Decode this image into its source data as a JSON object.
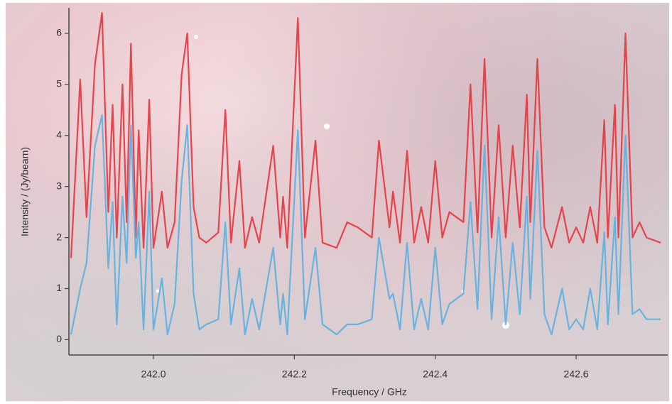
{
  "chart_data": {
    "type": "line",
    "x_label": "Frequency / GHz",
    "y_label": "Intensity / (Jy/beam)",
    "x": [
      241.883,
      241.896,
      241.905,
      241.917,
      241.927,
      241.936,
      241.942,
      241.948,
      241.956,
      241.962,
      241.968,
      241.975,
      241.979,
      241.986,
      241.994,
      242.0,
      242.012,
      242.02,
      242.03,
      242.04,
      242.048,
      242.057,
      242.065,
      242.075,
      242.092,
      242.102,
      242.11,
      242.122,
      242.13,
      242.14,
      242.15,
      242.17,
      242.18,
      242.184,
      242.19,
      242.205,
      242.215,
      242.23,
      242.24,
      242.26,
      242.275,
      242.29,
      242.31,
      242.32,
      242.335,
      242.34,
      242.35,
      242.36,
      242.37,
      242.38,
      242.39,
      242.4,
      242.41,
      242.42,
      242.44,
      242.45,
      242.46,
      242.47,
      242.48,
      242.49,
      242.5,
      242.51,
      242.52,
      242.53,
      242.535,
      242.545,
      242.555,
      242.565,
      242.58,
      242.59,
      242.6,
      242.61,
      242.62,
      242.63,
      242.64,
      242.645,
      242.655,
      242.66,
      242.67,
      242.68,
      242.69,
      242.7,
      242.72
    ],
    "series": [
      {
        "color": "#e8343c",
        "values": [
          1.6,
          5.1,
          2.4,
          5.4,
          6.4,
          2.5,
          4.6,
          2.0,
          5.0,
          2.3,
          5.8,
          2.0,
          4.1,
          1.8,
          4.7,
          1.8,
          2.9,
          1.8,
          2.3,
          5.2,
          6.0,
          2.6,
          2.0,
          1.9,
          2.1,
          4.5,
          1.9,
          3.5,
          1.8,
          2.4,
          1.9,
          3.8,
          2.0,
          2.8,
          1.8,
          6.3,
          2.0,
          3.9,
          1.9,
          1.8,
          2.3,
          2.2,
          2.0,
          3.9,
          2.2,
          2.9,
          1.9,
          3.7,
          1.9,
          2.6,
          1.9,
          3.5,
          2.0,
          2.5,
          2.3,
          5.0,
          2.1,
          5.5,
          2.0,
          4.2,
          2.0,
          3.8,
          2.2,
          4.8,
          2.3,
          5.5,
          2.2,
          1.8,
          2.6,
          1.9,
          2.2,
          1.9,
          2.6,
          1.9,
          4.3,
          2.0,
          4.6,
          2.0,
          6.0,
          2.0,
          2.3,
          2.0,
          1.9
        ]
      },
      {
        "color": "#5ab0e2",
        "values": [
          0.1,
          1.0,
          1.5,
          3.8,
          4.4,
          1.4,
          2.7,
          0.3,
          2.8,
          1.5,
          4.2,
          1.6,
          2.3,
          0.2,
          2.9,
          0.2,
          1.2,
          0.1,
          0.7,
          3.1,
          4.2,
          0.9,
          0.2,
          0.3,
          0.4,
          2.3,
          0.3,
          1.4,
          0.1,
          0.8,
          0.2,
          1.8,
          0.3,
          0.9,
          0.1,
          4.1,
          0.4,
          1.8,
          0.3,
          0.1,
          0.3,
          0.3,
          0.4,
          2.0,
          0.8,
          0.9,
          0.2,
          1.9,
          0.2,
          0.8,
          0.2,
          1.8,
          0.3,
          0.7,
          0.9,
          2.7,
          0.6,
          3.8,
          0.4,
          2.4,
          0.3,
          1.9,
          0.5,
          2.8,
          0.8,
          3.7,
          0.5,
          0.1,
          1.0,
          0.2,
          0.4,
          0.2,
          1.0,
          0.2,
          2.1,
          0.3,
          2.4,
          0.5,
          4.0,
          0.5,
          0.6,
          0.4,
          0.4
        ]
      }
    ],
    "xlim": [
      241.88,
      242.73
    ],
    "ylim": [
      -0.3,
      6.5
    ],
    "xticks": [
      {
        "value": 242,
        "label": "242.0"
      },
      242.2,
      242.4,
      242.6
    ],
    "yticks": [
      0,
      1,
      2,
      3,
      4,
      5,
      6
    ]
  }
}
